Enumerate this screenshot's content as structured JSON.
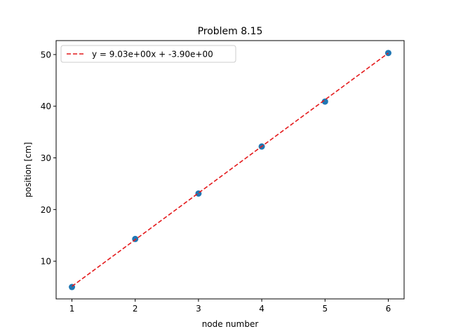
{
  "chart_data": {
    "type": "scatter",
    "title": "Problem 8.15",
    "xlabel": "node number",
    "ylabel": "position [cm]",
    "xlim": [
      0.75,
      6.25
    ],
    "ylim": [
      2.7,
      52.7
    ],
    "xticks": [
      1,
      2,
      3,
      4,
      5,
      6
    ],
    "yticks": [
      10,
      20,
      30,
      40,
      50
    ],
    "grid": false,
    "legend_position": "upper-left",
    "series": [
      {
        "kind": "scatter",
        "color": "#1f77b4",
        "x": [
          1,
          2,
          3,
          4,
          5,
          6
        ],
        "y": [
          5.0,
          14.3,
          23.1,
          32.2,
          40.9,
          50.3
        ]
      },
      {
        "kind": "line",
        "name": "y = 9.03e+00x + -3.90e+00",
        "style": "dashed",
        "color": "#e41a1c",
        "slope": 9.03,
        "intercept": -3.9,
        "x_range": [
          1,
          6
        ]
      }
    ]
  }
}
